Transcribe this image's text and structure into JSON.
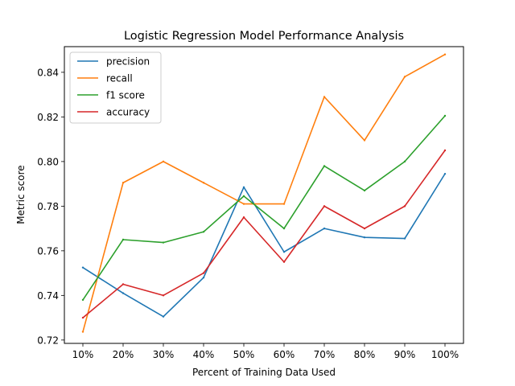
{
  "chart_data": {
    "type": "line",
    "title": "Logistic Regression Model Performance Analysis",
    "xlabel": "Percent of Training Data Used",
    "ylabel": "Metric score",
    "categories": [
      "10%",
      "20%",
      "30%",
      "40%",
      "50%",
      "60%",
      "70%",
      "80%",
      "90%",
      "100%"
    ],
    "ylim": [
      0.7185,
      0.8515
    ],
    "yticks": [
      0.72,
      0.74,
      0.76,
      0.78,
      0.8,
      0.82,
      0.84
    ],
    "ytick_labels": [
      "0.72",
      "0.74",
      "0.76",
      "0.78",
      "0.80",
      "0.82",
      "0.84"
    ],
    "grid": false,
    "legend_position": "top-left",
    "series": [
      {
        "name": "precision",
        "color": "#1f77b4",
        "values": [
          0.7525,
          0.741,
          0.7305,
          0.748,
          0.7885,
          0.7595,
          0.77,
          0.766,
          0.7655,
          0.7945
        ]
      },
      {
        "name": "recall",
        "color": "#ff7f0e",
        "values": [
          0.7237,
          0.7905,
          0.8,
          0.7905,
          0.781,
          0.781,
          0.829,
          0.8095,
          0.838,
          0.848
        ]
      },
      {
        "name": "f1 score",
        "color": "#2ca02c",
        "values": [
          0.738,
          0.765,
          0.7637,
          0.7685,
          0.7845,
          0.77,
          0.798,
          0.787,
          0.8,
          0.8205
        ]
      },
      {
        "name": "accuracy",
        "color": "#d62728",
        "values": [
          0.73,
          0.745,
          0.74,
          0.75,
          0.775,
          0.755,
          0.78,
          0.77,
          0.78,
          0.805
        ]
      }
    ]
  }
}
